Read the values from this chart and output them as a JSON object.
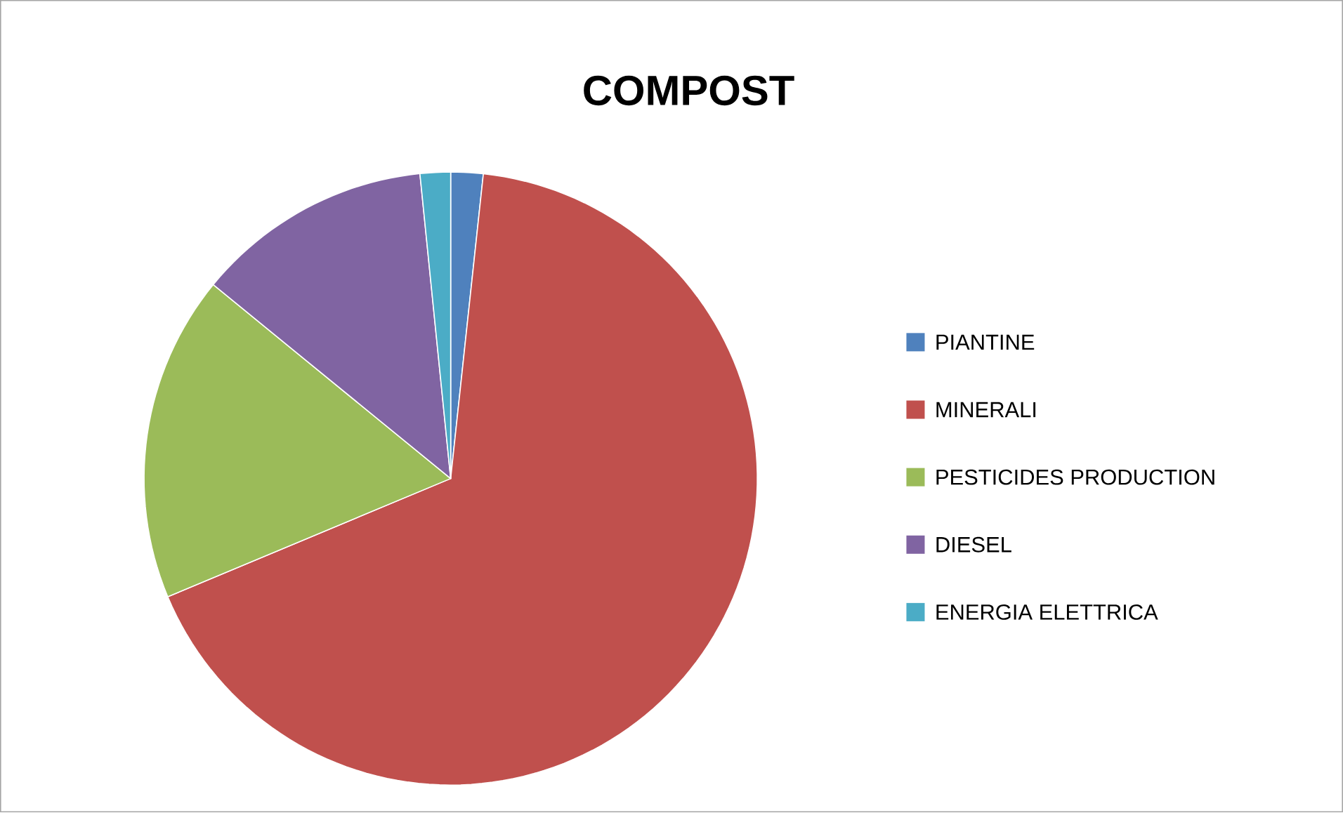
{
  "chart_data": {
    "type": "pie",
    "title": "COMPOST",
    "categories": [
      "PIANTINE",
      "MINERALI",
      "PESTICIDES PRODUCTION",
      "DIESEL",
      "ENERGIA ELETTRICA"
    ],
    "values": [
      1.7,
      67.0,
      17.2,
      12.5,
      1.6
    ],
    "colors": [
      "#4f81bd",
      "#c0504d",
      "#9bbb59",
      "#8064a2",
      "#4bacc6"
    ],
    "legend": "right"
  }
}
